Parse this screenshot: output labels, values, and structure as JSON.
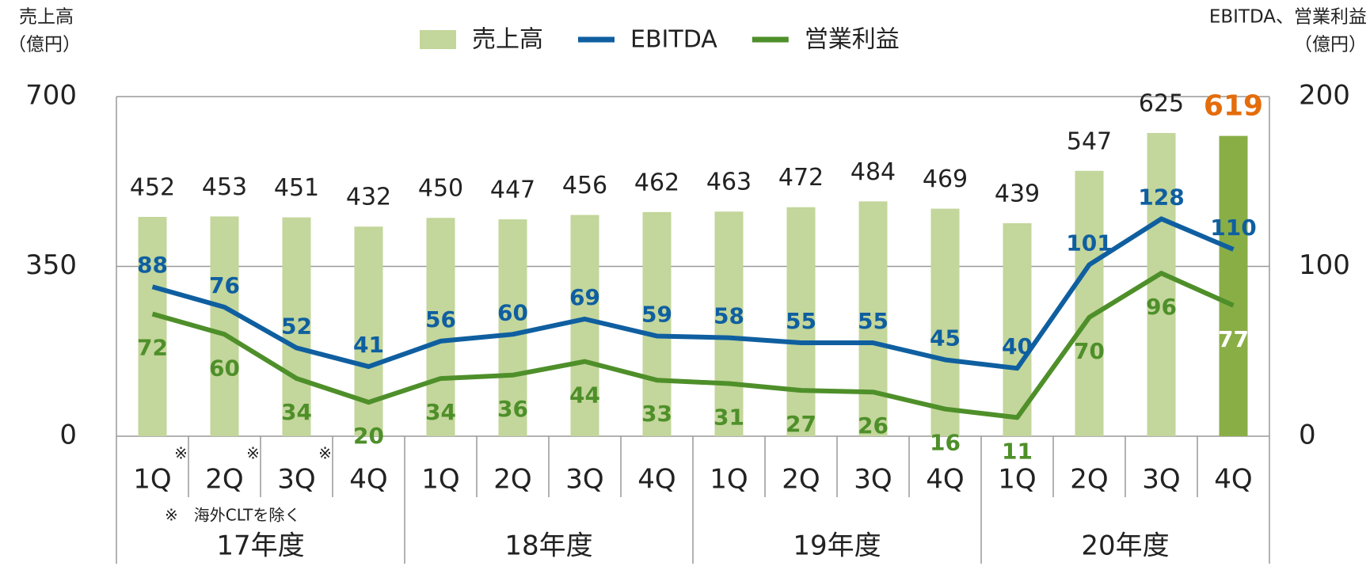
{
  "chart_data": {
    "type": "bar_line",
    "y_title": [
      "売上高",
      "（億円）"
    ],
    "y2_title": [
      "EBITDA、営業利益",
      "（億円）"
    ],
    "categories": [
      "1Q",
      "2Q",
      "3Q",
      "4Q",
      "1Q",
      "2Q",
      "3Q",
      "4Q",
      "1Q",
      "2Q",
      "3Q",
      "4Q",
      "1Q",
      "2Q",
      "3Q",
      "4Q"
    ],
    "notes": [
      "※",
      "※",
      "※",
      null,
      null,
      null,
      null,
      null,
      null,
      null,
      null,
      null,
      null,
      null,
      null,
      null
    ],
    "footnote": "※　海外CLTを除く",
    "groups": [
      "17年度",
      "18年度",
      "19年度",
      "20年度"
    ],
    "ylim": [
      0,
      700
    ],
    "yticks": [
      0,
      350,
      700
    ],
    "y2lim": [
      0,
      200
    ],
    "y2ticks": [
      0,
      100,
      200
    ],
    "grid": true,
    "legend": "top",
    "series": [
      {
        "name": "売上高",
        "type": "bar",
        "color": "#c3d69b",
        "colors": [
          "#c3d69b",
          "#c3d69b",
          "#c3d69b",
          "#c3d69b",
          "#c3d69b",
          "#c3d69b",
          "#c3d69b",
          "#c3d69b",
          "#c3d69b",
          "#c3d69b",
          "#c3d69b",
          "#c3d69b",
          "#c3d69b",
          "#c3d69b",
          "#c3d69b",
          "#8aae46"
        ],
        "label_colors": [
          "#222",
          "#222",
          "#222",
          "#222",
          "#222",
          "#222",
          "#222",
          "#222",
          "#222",
          "#222",
          "#222",
          "#222",
          "#222",
          "#222",
          "#222",
          "#e46c0a"
        ],
        "values": [
          452,
          453,
          451,
          432,
          450,
          447,
          456,
          462,
          463,
          472,
          484,
          469,
          439,
          547,
          625,
          619
        ]
      },
      {
        "name": "EBITDA",
        "type": "line",
        "axis": "y2",
        "color": "#0f5fa0",
        "label_position": "above",
        "label_colors": [
          "#0f5fa0",
          "#0f5fa0",
          "#0f5fa0",
          "#0f5fa0",
          "#0f5fa0",
          "#0f5fa0",
          "#0f5fa0",
          "#0f5fa0",
          "#0f5fa0",
          "#0f5fa0",
          "#0f5fa0",
          "#0f5fa0",
          "#0f5fa0",
          "#0f5fa0",
          "#0f5fa0",
          "#0f5fa0"
        ],
        "values": [
          88,
          76,
          52,
          41,
          56,
          60,
          69,
          59,
          58,
          55,
          55,
          45,
          40,
          101,
          128,
          110
        ]
      },
      {
        "name": "営業利益",
        "type": "line",
        "axis": "y2",
        "color": "#4e8f2a",
        "label_position": "below",
        "label_colors": [
          "#4e8f2a",
          "#4e8f2a",
          "#4e8f2a",
          "#4e8f2a",
          "#4e8f2a",
          "#4e8f2a",
          "#4e8f2a",
          "#4e8f2a",
          "#4e8f2a",
          "#4e8f2a",
          "#4e8f2a",
          "#4e8f2a",
          "#4e8f2a",
          "#4e8f2a",
          "#4e8f2a",
          "#ffffff"
        ],
        "values": [
          72,
          60,
          34,
          20,
          34,
          36,
          44,
          33,
          31,
          27,
          26,
          16,
          11,
          70,
          96,
          77
        ]
      }
    ]
  }
}
